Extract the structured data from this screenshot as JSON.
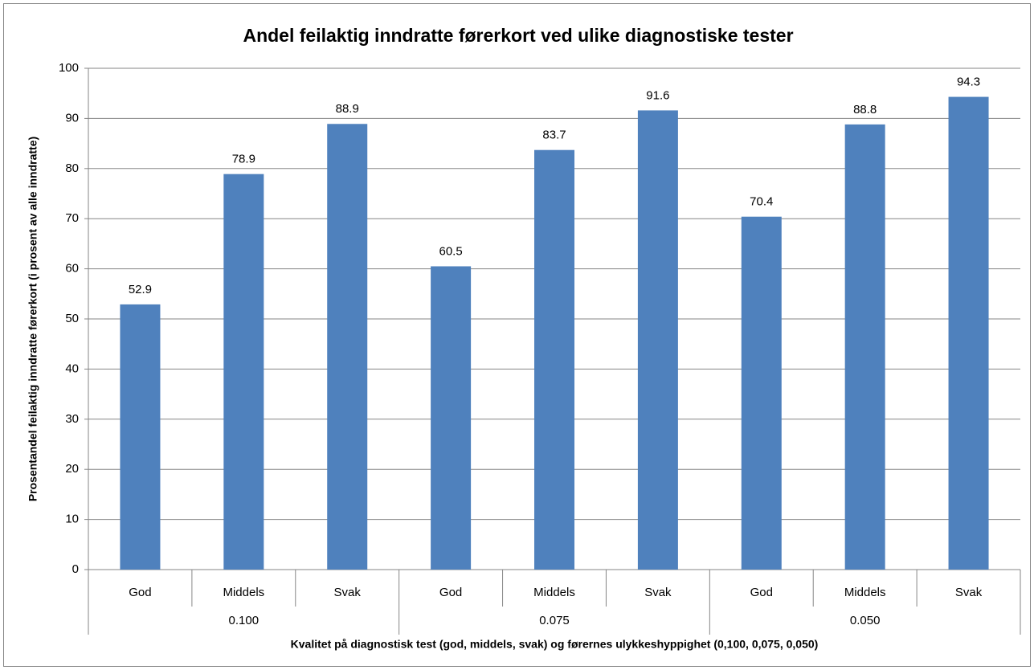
{
  "chart_data": {
    "type": "bar",
    "title": "Andel feilaktig inndratte førerkort ved ulike diagnostiske tester",
    "y_label": "Prosentandel feilaktig inndratte førerkort (i prosent av alle inndratte)",
    "x_label": "Kvalitet på diagnostisk test (god, middels, svak) og førernes ulykkeshyppighet (0,100, 0,075, 0,050)",
    "categories": [
      "God",
      "Middels",
      "Svak",
      "God",
      "Middels",
      "Svak",
      "God",
      "Middels",
      "Svak"
    ],
    "groups": [
      "0.100",
      "0.075",
      "0.050"
    ],
    "values": [
      52.9,
      78.9,
      88.9,
      60.5,
      83.7,
      91.6,
      70.4,
      88.8,
      94.3
    ],
    "color": "#4f81bd",
    "ylim": [
      0,
      100
    ],
    "yticks": [
      0,
      10,
      20,
      30,
      40,
      50,
      60,
      70,
      80,
      90,
      100
    ],
    "grid": true
  }
}
